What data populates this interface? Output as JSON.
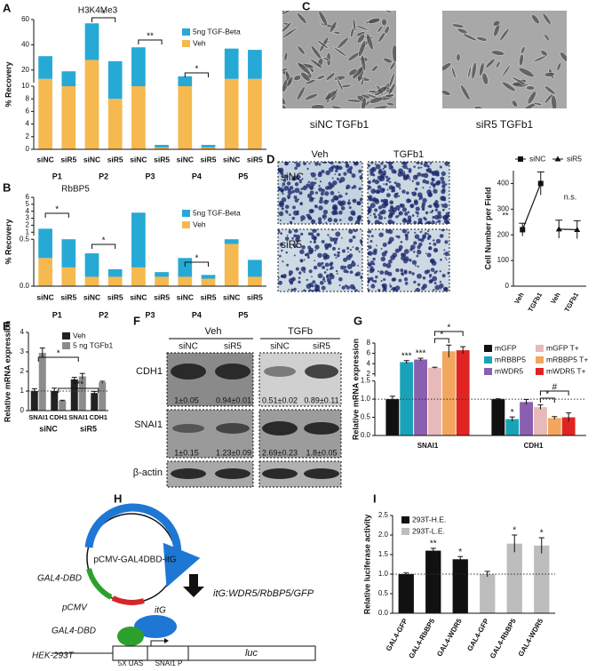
{
  "panel_labels": [
    "A",
    "B",
    "C",
    "D",
    "E",
    "F",
    "G",
    "H",
    "I"
  ],
  "chart_data": [
    {
      "type": "bar",
      "stacked": true,
      "title": "H3K4Me3",
      "y_label": "% Recovery",
      "categories": [
        "siNC",
        "siR5",
        "siNC",
        "siR5",
        "siNC",
        "siR5",
        "siNC",
        "siR5",
        "siNC",
        "siR5"
      ],
      "groups": [
        "P1",
        "P2",
        "P3",
        "P4",
        "P5"
      ],
      "series": [
        {
          "name": "5ng TGF-Beta",
          "color": "#27a9d6",
          "values": [
            18,
            9,
            29,
            19,
            28,
            0.4,
            5,
            0.4,
            24,
            23
          ]
        },
        {
          "name": "Veh",
          "color": "#f6b94f",
          "values": [
            13,
            10,
            28,
            8,
            10,
            0.3,
            10,
            0.3,
            13,
            13
          ]
        }
      ],
      "ylim": [
        [
          0,
          10
        ],
        [
          10,
          60
        ]
      ],
      "yticks": [
        [
          0,
          2,
          4,
          6,
          8,
          10
        ],
        [
          20,
          40,
          60
        ]
      ],
      "annotations": [
        "*",
        "**",
        "*"
      ]
    },
    {
      "type": "bar",
      "stacked": true,
      "title": "RbBP5",
      "y_label": "% Recovery",
      "categories": [
        "siNC",
        "siR5",
        "siNC",
        "siR5",
        "siNC",
        "siR5",
        "siNC",
        "siR5",
        "siNC",
        "siR5"
      ],
      "groups": [
        "P1",
        "P2",
        "P3",
        "P4",
        "P5"
      ],
      "series": [
        {
          "name": "5ng TGF-Beta",
          "color": "#27a9d6",
          "values": [
            1.2,
            0.3,
            0.25,
            0.08,
            3.6,
            0.05,
            0.2,
            0.04,
            0.05,
            0.18
          ]
        },
        {
          "name": "Veh",
          "color": "#f6b94f",
          "values": [
            0.3,
            0.2,
            0.1,
            0.1,
            0.2,
            0.1,
            0.1,
            0.08,
            0.45,
            0.1
          ]
        }
      ],
      "ylim": [
        [
          0,
          0.5
        ],
        [
          0.5,
          6
        ]
      ],
      "yticks": [
        [
          {
            "value": 0,
            "label": "0.0"
          },
          {
            "value": 0.5,
            "label": "0.5"
          }
        ],
        [
          1,
          2,
          3,
          4,
          5,
          6
        ]
      ],
      "annotations": [
        "*",
        "*",
        "*"
      ]
    },
    {
      "type": "line",
      "y_label": "Cell Number per Field",
      "categories": [
        "Veh",
        "TGFb1",
        "Veh",
        "TGFb1"
      ],
      "series": [
        {
          "name": "siNC",
          "color": "#111111",
          "marker": "square",
          "values": [
            220,
            400,
            null,
            null
          ],
          "errors": [
            25,
            45,
            null,
            null
          ]
        },
        {
          "name": "siR5",
          "color": "#111111",
          "marker": "triangle",
          "values": [
            null,
            null,
            222,
            220
          ],
          "errors": [
            null,
            null,
            35,
            35
          ]
        }
      ],
      "ylim": [
        0,
        450
      ],
      "yticks": [
        0,
        100,
        200,
        300,
        400
      ],
      "annotations": [
        "**",
        "n.s."
      ]
    },
    {
      "type": "bar",
      "y_label": "Relative mRNA expression",
      "categories": [
        "SNAI1",
        "CDH1",
        "SNAI1",
        "CDH1"
      ],
      "groups": [
        "siNC",
        "siR5"
      ],
      "series": [
        {
          "name": "Veh",
          "color": "#222222",
          "values": [
            1.0,
            1.0,
            1.6,
            0.9
          ],
          "errors": [
            0.12,
            0.15,
            0.1,
            0.08
          ]
        },
        {
          "name": "5 ng TGFb1",
          "color": "#8c8c8c",
          "values": [
            2.95,
            0.5,
            1.75,
            1.45
          ],
          "errors": [
            0.25,
            0.03,
            0.15,
            0.05
          ]
        }
      ],
      "ylim": [
        0,
        4
      ],
      "yticks": [
        0,
        1,
        2,
        3,
        4
      ],
      "hline": 1,
      "annotations": [
        "*",
        "***"
      ]
    },
    {
      "type": "bar",
      "y_label": "Relative mRNA expression",
      "categories": [
        "SNAI1",
        "CDH1"
      ],
      "series": [
        {
          "name": "mGFP",
          "color": "#111111",
          "values": [
            1.0,
            1.0
          ],
          "errors": [
            0.08,
            0.01
          ]
        },
        {
          "name": "mRBBP5",
          "color": "#1aa3b8",
          "values": [
            4.3,
            0.45
          ],
          "errors": [
            0.3,
            0.06
          ]
        },
        {
          "name": "mWDR5",
          "color": "#8a5fb0",
          "values": [
            4.8,
            0.92
          ],
          "errors": [
            0.25,
            0.07
          ]
        },
        {
          "name": "mGFP T+",
          "color": "#e8b9b9",
          "values": [
            3.2,
            0.78
          ],
          "errors": [
            0.1,
            0.06
          ]
        },
        {
          "name": "mRBBP5 T+",
          "color": "#f2a65e",
          "values": [
            6.4,
            0.48
          ],
          "errors": [
            1.2,
            0.04
          ]
        },
        {
          "name": "mWDR5 T+",
          "color": "#e02424",
          "values": [
            6.6,
            0.5
          ],
          "errors": [
            0.7,
            0.12
          ]
        }
      ],
      "ylim": [
        [
          0,
          1.5
        ],
        [
          1.5,
          8
        ]
      ],
      "yticks": [
        [
          {
            "value": 0,
            "label": "0.0"
          },
          {
            "value": 0.5,
            "label": "0.5"
          },
          {
            "value": 1,
            "label": "1.0"
          },
          {
            "value": 1.5,
            "label": "1.5"
          }
        ],
        [
          2,
          4,
          6,
          8
        ]
      ],
      "hline": 1,
      "annotations": [
        "***",
        "***",
        "*",
        "*",
        "*",
        "#",
        "*"
      ]
    },
    {
      "type": "bar",
      "y_label": "Relative luciferase activity",
      "categories": [
        "GAL4-GFP",
        "GAL4-RbBP5",
        "GAL4-WDR5",
        "GAL4-GFP",
        "GAL4-RbBP5",
        "GAL4-WDR5"
      ],
      "series": [
        {
          "name": "293T-H.E.",
          "color": "#111111",
          "values": [
            1.0,
            1.6,
            1.38,
            null,
            null,
            null
          ],
          "errors": [
            0.03,
            0.06,
            0.07,
            null,
            null,
            null
          ]
        },
        {
          "name": "293T-L.E.",
          "color": "#bdbdbd",
          "values": [
            null,
            null,
            null,
            1.0,
            1.78,
            1.73
          ],
          "errors": [
            null,
            null,
            null,
            0.07,
            0.22,
            0.2
          ]
        }
      ],
      "ylim": [
        0,
        2.5
      ],
      "yticks": [
        {
          "value": 0,
          "label": "0.0"
        },
        {
          "value": 0.5,
          "label": "0.5"
        },
        {
          "value": 1,
          "label": "1.0"
        },
        {
          "value": 1.5,
          "label": "1.5"
        },
        {
          "value": 2,
          "label": "2.0"
        },
        {
          "value": 2.5,
          "label": "2.5"
        }
      ],
      "hline": 1,
      "annotations": [
        "**",
        "*",
        "*",
        "*"
      ]
    }
  ],
  "micrographs": {
    "captions": [
      "siNC TGFb1",
      "siR5 TGFb1"
    ]
  },
  "invasion": {
    "columns": [
      "Veh",
      "TGFb1"
    ],
    "rows": [
      "siNC",
      "siR5"
    ]
  },
  "blot": {
    "conditions": [
      "Veh",
      "TGFb"
    ],
    "lanes": [
      "siNC",
      "siR5",
      "siNC",
      "siR5"
    ],
    "proteins": [
      "CDH1",
      "SNAI1",
      "β-actin"
    ],
    "quant": [
      [
        "1±0.05",
        "0.94±0.01",
        "0.51±0.02",
        "0.89±0.11"
      ],
      [
        "1±0.15",
        "1.23±0.09",
        "2.69±0.23",
        "1.8±0.05"
      ]
    ]
  },
  "diagram": {
    "plasmid": "pCMV-GAL4DBD-itG",
    "dbd_segment": "GAL4-DBD",
    "promoter_segment": "pCMV",
    "insert": "itG:WDR5/RbBP5/GFP",
    "itg_protein": "itG",
    "dbd_protein": "GAL4-DBD",
    "cell_line": "HEK-293T",
    "uas": "5X UAS",
    "snai1_promoter": "SNAI1 P",
    "reporter": "luc"
  }
}
